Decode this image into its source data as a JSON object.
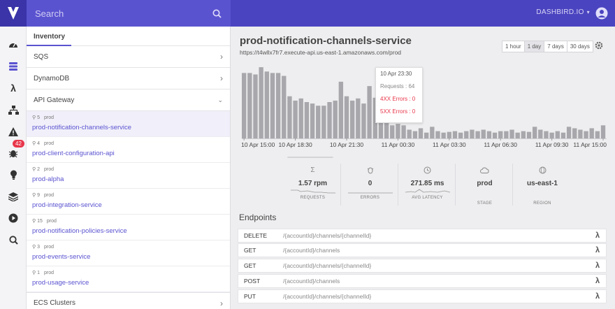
{
  "search": {
    "placeholder": "Search"
  },
  "org": {
    "name": "DASHBIRD.IO"
  },
  "rail": {
    "bug_badge": "42"
  },
  "inventory": {
    "tab": "Inventory",
    "categories_top": [
      {
        "label": "SQS"
      },
      {
        "label": "DynamoDB"
      },
      {
        "label": "API Gateway"
      }
    ],
    "services": [
      {
        "count": "5",
        "stage": "prod",
        "name": "prod-notification-channels-service",
        "active": true
      },
      {
        "count": "4",
        "stage": "prod",
        "name": "prod-client-configuration-api"
      },
      {
        "count": "2",
        "stage": "prod",
        "name": "prod-alpha"
      },
      {
        "count": "9",
        "stage": "prod",
        "name": "prod-integration-service"
      },
      {
        "count": "15",
        "stage": "prod",
        "name": "prod-notification-policies-service"
      },
      {
        "count": "3",
        "stage": "prod",
        "name": "prod-events-service"
      },
      {
        "count": "1",
        "stage": "prod",
        "name": "prod-usage-service"
      }
    ],
    "categories_bottom": [
      {
        "label": "ECS Clusters"
      }
    ]
  },
  "main": {
    "title": "prod-notification-channels-service",
    "url": "https://t4wllx7fr7.execute-api.us-east-1.amazonaws.com/prod",
    "ranges": [
      "1 hour",
      "1 day",
      "7 days",
      "30 days"
    ],
    "selected_range": "1 day"
  },
  "chart_data": {
    "type": "bar",
    "x_ticks": [
      "10 Apr 15:00",
      "10 Apr 18:30",
      "10 Apr 21:30",
      "11 Apr 00:30",
      "11 Apr 03:30",
      "11 Apr 06:30",
      "11 Apr 09:30",
      "11 Apr 15:00"
    ],
    "values": [
      90,
      90,
      88,
      98,
      92,
      90,
      90,
      86,
      58,
      52,
      55,
      50,
      48,
      45,
      45,
      50,
      52,
      78,
      58,
      52,
      55,
      48,
      72,
      56,
      50,
      30,
      18,
      20,
      18,
      12,
      10,
      14,
      8,
      16,
      10,
      8,
      9,
      10,
      8,
      10,
      12,
      10,
      12,
      10,
      8,
      10,
      10,
      12,
      8,
      10,
      9,
      16,
      12,
      10,
      8,
      10,
      8,
      16,
      14,
      12,
      10,
      14,
      10,
      18
    ],
    "ylim": [
      0,
      100
    ],
    "tooltip": {
      "date": "10 Apr 23:30",
      "requests": "Requests : 64",
      "errors_4xx": "4XX Errors : 0",
      "errors_5xx": "5XX Errors : 0"
    },
    "colors": {
      "bar": "#a8a8ac",
      "highlight": "#5a53d0"
    }
  },
  "metrics": [
    {
      "value": "1.57 rpm",
      "label": "REQUESTS",
      "icon": "sigma-icon"
    },
    {
      "value": "0",
      "label": "ERRORS",
      "icon": "bug-icon"
    },
    {
      "value": "271.85 ms",
      "label": "AVG LATENCY",
      "icon": "clock-icon"
    },
    {
      "value": "prod",
      "label": "STAGE",
      "icon": "cloud-icon"
    },
    {
      "value": "us-east-1",
      "label": "REGION",
      "icon": "globe-icon"
    }
  ],
  "endpoints": {
    "title": "Endpoints",
    "items": [
      {
        "method": "DELETE",
        "path": "/{accountId}/channels/{channelId}"
      },
      {
        "method": "GET",
        "path": "/{accountId}/channels"
      },
      {
        "method": "GET",
        "path": "/{accountId}/channels/{channelId}"
      },
      {
        "method": "POST",
        "path": "/{accountId}/channels"
      },
      {
        "method": "PUT",
        "path": "/{accountId}/channels/{channelId}"
      }
    ]
  }
}
